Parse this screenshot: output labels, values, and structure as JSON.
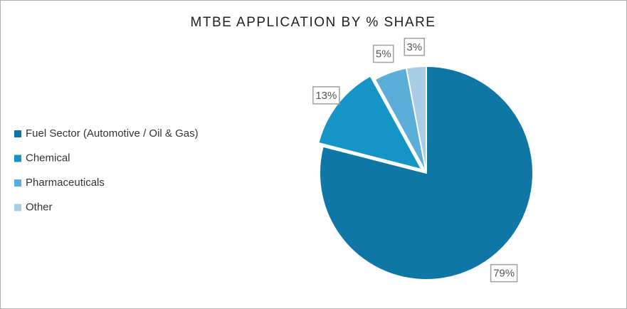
{
  "chart_data": {
    "type": "pie",
    "title": "MTBE APPLICATION BY % SHARE",
    "categories": [
      "Fuel Sector (Automotive / Oil & Gas)",
      "Chemical",
      "Pharmaceuticals",
      "Other"
    ],
    "values": [
      79,
      13,
      5,
      3
    ],
    "value_labels": [
      "79%",
      "13%",
      "5%",
      "3%"
    ],
    "colors": [
      "#0f77a6",
      "#1495c6",
      "#5aaed8",
      "#a9cde6"
    ],
    "exploded": [
      false,
      true,
      false,
      false
    ],
    "legend": "left"
  }
}
